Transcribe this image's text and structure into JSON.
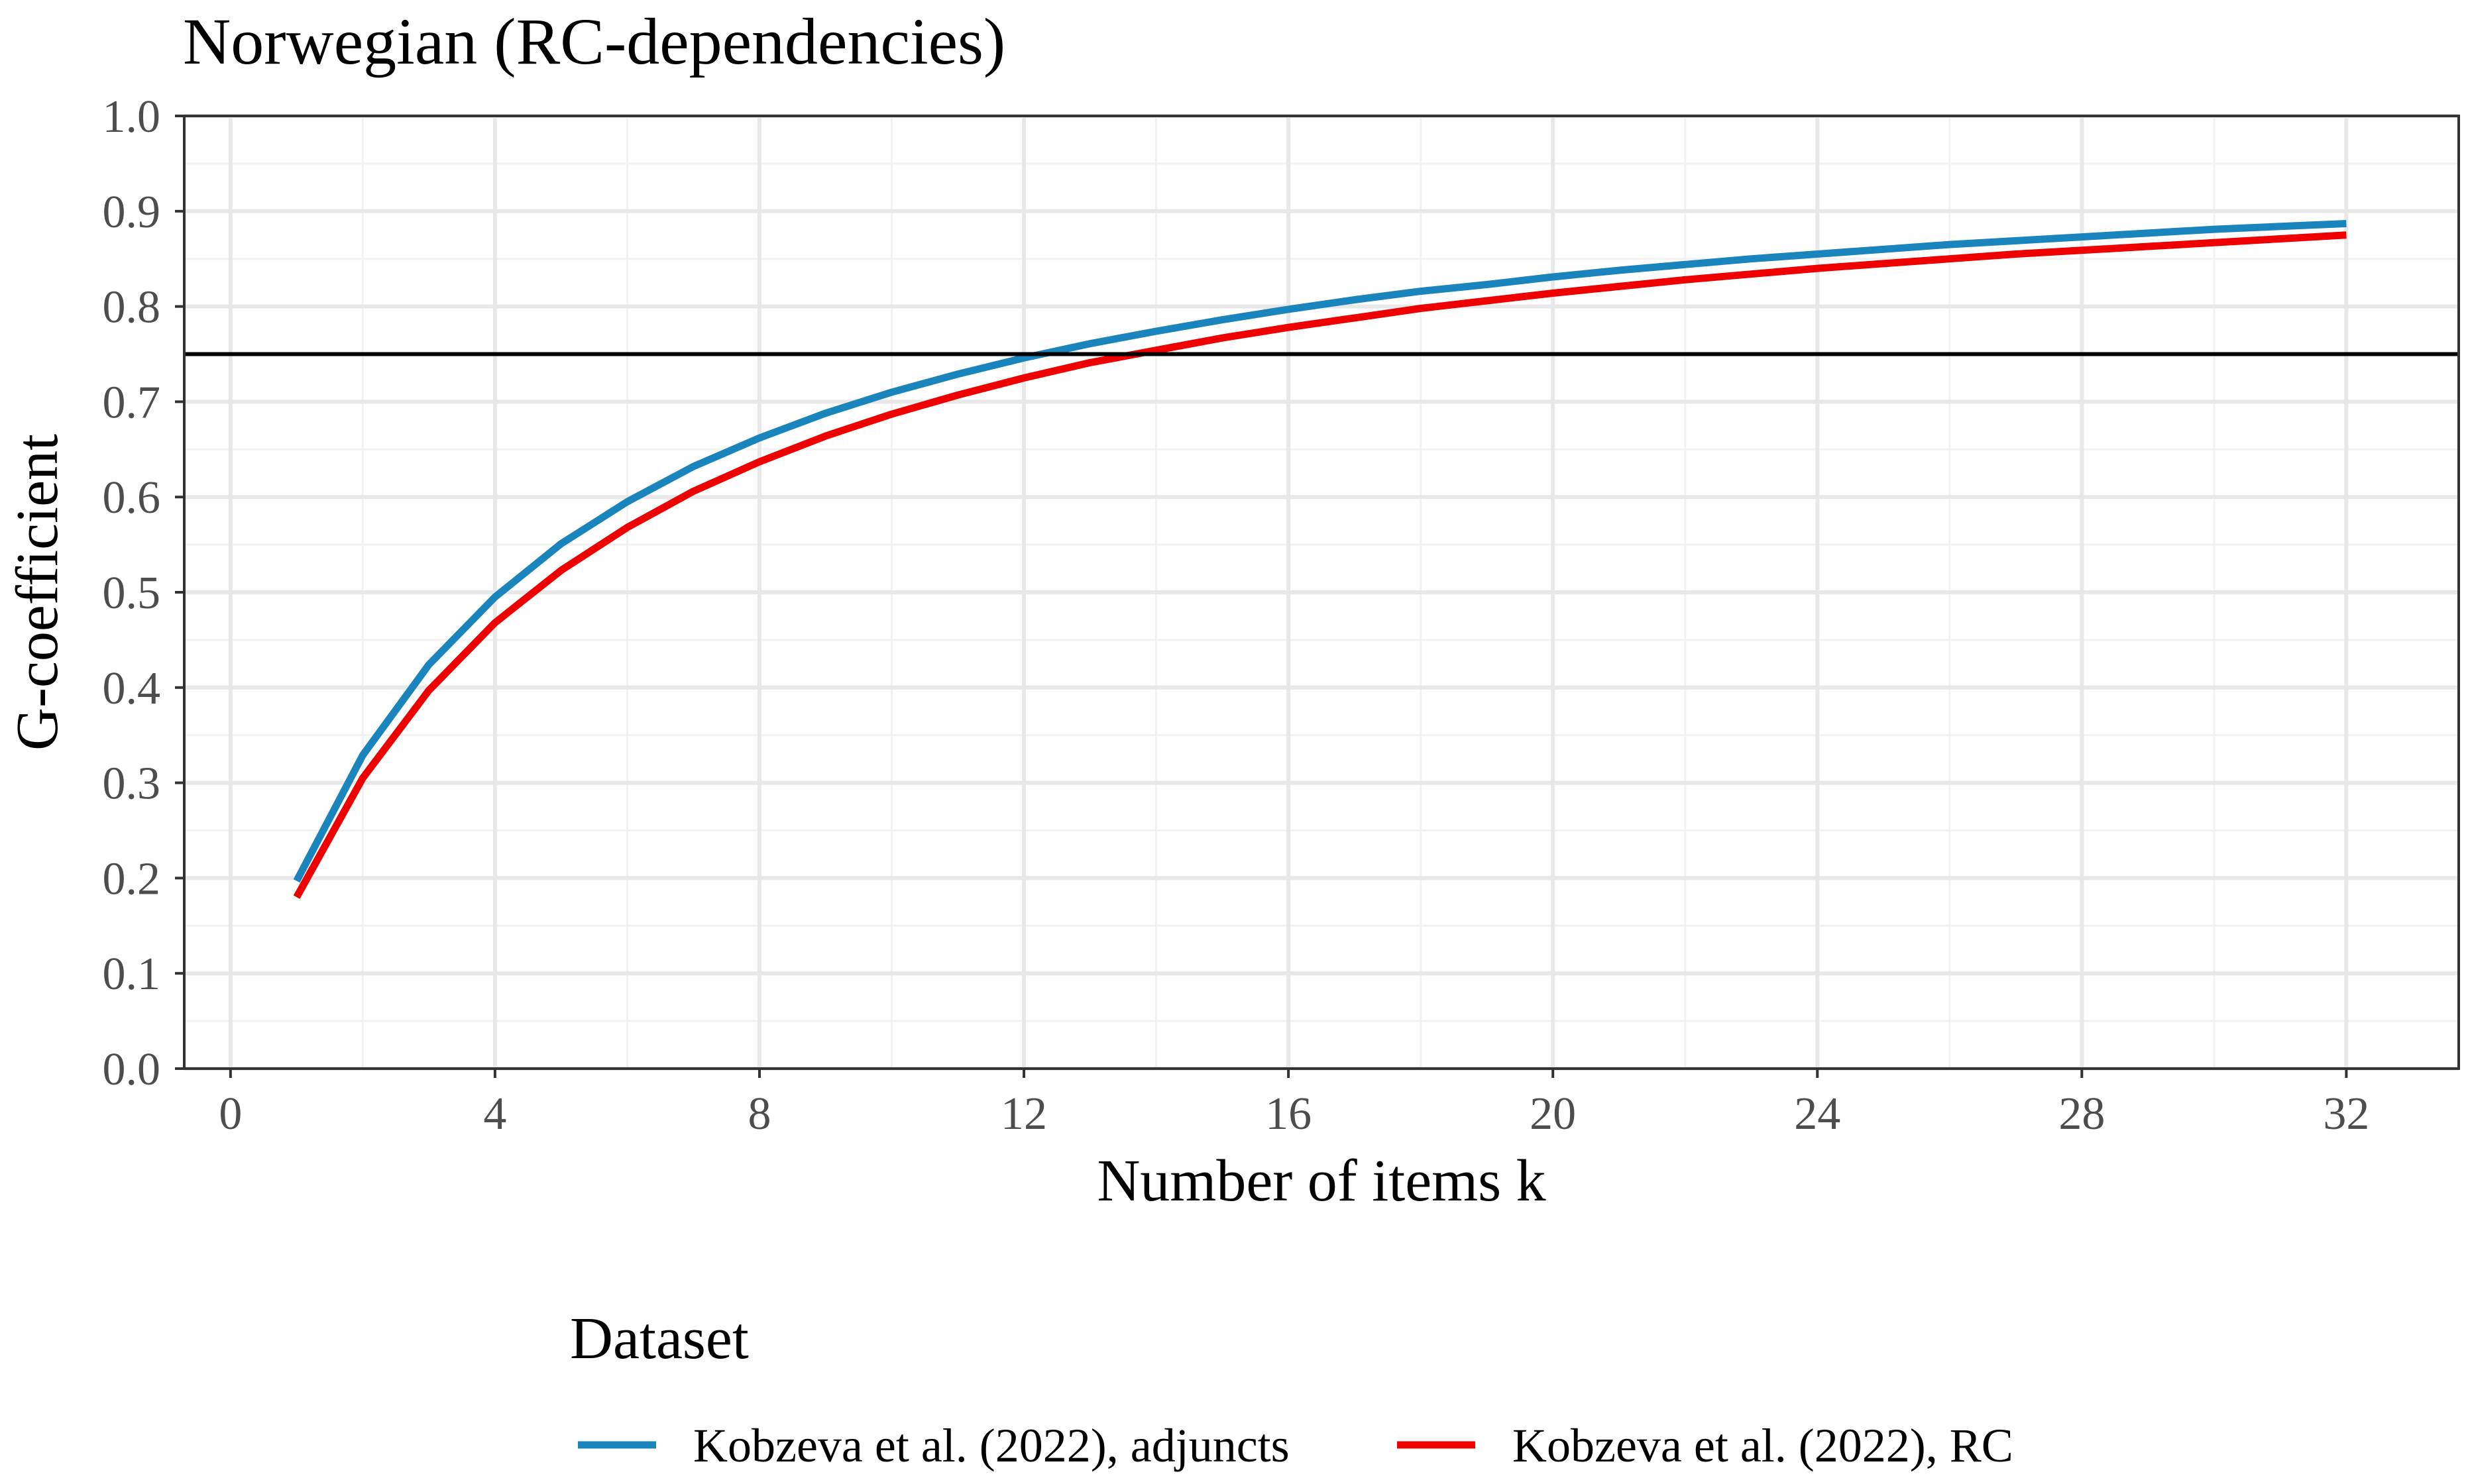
{
  "chart_data": {
    "type": "line",
    "title": "Norwegian (RC-dependencies)",
    "xlabel": "Number of items k",
    "ylabel": "G-coefficient",
    "xlim": [
      -0.7,
      33.7
    ],
    "ylim": [
      0,
      1
    ],
    "x_ticks": [
      0,
      4,
      8,
      12,
      16,
      20,
      24,
      28,
      32
    ],
    "x_tick_labels": [
      "0",
      "4",
      "8",
      "12",
      "16",
      "20",
      "24",
      "28",
      "32"
    ],
    "y_ticks": [
      0,
      0.1,
      0.2,
      0.3,
      0.4,
      0.5,
      0.6,
      0.7,
      0.8,
      0.9,
      1.0
    ],
    "y_tick_labels": [
      "0.0",
      "0.1",
      "0.2",
      "0.3",
      "0.4",
      "0.5",
      "0.6",
      "0.7",
      "0.8",
      "0.9",
      "1.0"
    ],
    "grid": true,
    "reference_line": {
      "y": 0.75,
      "color": "#000000"
    },
    "legend": {
      "title": "Dataset",
      "position": "bottom"
    },
    "x": [
      1,
      2,
      3,
      4,
      5,
      6,
      7,
      8,
      9,
      10,
      11,
      12,
      13,
      14,
      15,
      16,
      17,
      18,
      19,
      20,
      21,
      22,
      23,
      24,
      25,
      26,
      27,
      28,
      29,
      30,
      31,
      32
    ],
    "series": [
      {
        "name": "Kobzeva et al. (2022), adjuncts",
        "color": "#1a85bd",
        "values": [
          0.197,
          0.329,
          0.424,
          0.495,
          0.551,
          0.595,
          0.632,
          0.662,
          0.688,
          0.71,
          0.729,
          0.746,
          0.761,
          0.774,
          0.786,
          0.797,
          0.807,
          0.816,
          0.823,
          0.831,
          0.838,
          0.844,
          0.85,
          0.855,
          0.86,
          0.865,
          0.869,
          0.873,
          0.877,
          0.881,
          0.884,
          0.887
        ]
      },
      {
        "name": "Kobzeva et al. (2022), RC",
        "color": "#ee0000",
        "values": [
          0.18,
          0.305,
          0.397,
          0.468,
          0.523,
          0.568,
          0.606,
          0.637,
          0.664,
          0.687,
          0.707,
          0.725,
          0.741,
          0.754,
          0.767,
          0.778,
          0.788,
          0.798,
          0.806,
          0.814,
          0.821,
          0.828,
          0.834,
          0.84,
          0.845,
          0.85,
          0.855,
          0.859,
          0.863,
          0.867,
          0.871,
          0.875
        ]
      }
    ]
  }
}
